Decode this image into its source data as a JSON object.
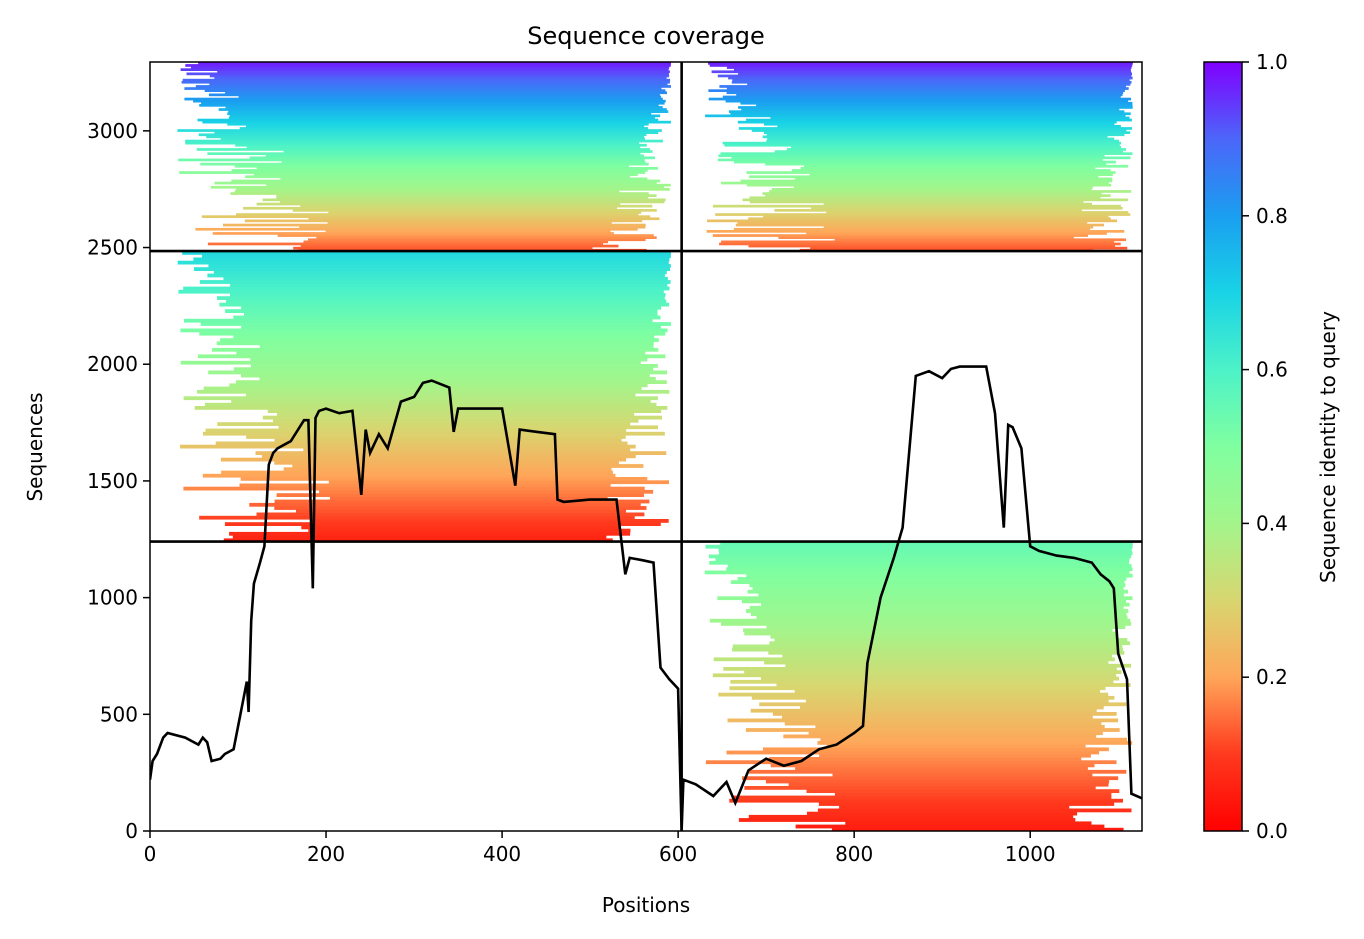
{
  "chart_data": {
    "type": "heatmap",
    "title": "Sequence coverage",
    "xlabel": "Positions",
    "ylabel": "Sequences",
    "xlim": [
      0,
      1127
    ],
    "ylim": [
      0,
      3295
    ],
    "xticks": [
      0,
      200,
      400,
      600,
      800,
      1000
    ],
    "yticks": [
      0,
      500,
      1000,
      1500,
      2000,
      2500,
      3000
    ],
    "colorbar": {
      "label": "Sequence identity to query",
      "colormap": "rainbow_r",
      "range": [
        0,
        1
      ],
      "ticks": [
        "0.0",
        "0.2",
        "0.4",
        "0.6",
        "0.8",
        "1.0"
      ]
    },
    "segment_boundaries": {
      "x": [
        604
      ],
      "y": [
        1240,
        2485
      ]
    },
    "coverage_blocks": [
      {
        "x0": 0,
        "x1": 604,
        "y0": 2485,
        "y1": 3295,
        "id_top": 0.97,
        "id_bottom": 0.12
      },
      {
        "x0": 0,
        "x1": 604,
        "y0": 1240,
        "y1": 2485,
        "id_top": 0.68,
        "id_bottom": 0.06
      },
      {
        "x0": 604,
        "x1": 1127,
        "y0": 2485,
        "y1": 3295,
        "id_top": 0.97,
        "id_bottom": 0.12
      },
      {
        "x0": 604,
        "x1": 1127,
        "y0": 0,
        "y1": 1240,
        "id_top": 0.55,
        "id_bottom": 0.05
      }
    ],
    "series": [
      {
        "type": "line",
        "color": "#000000",
        "x": [
          0,
          3,
          8,
          15,
          20,
          40,
          55,
          60,
          65,
          70,
          80,
          85,
          95,
          110,
          112,
          115,
          118,
          125,
          130,
          135,
          140,
          145,
          160,
          175,
          180,
          185,
          188,
          192,
          200,
          215,
          230,
          240,
          245,
          250,
          260,
          270,
          285,
          300,
          310,
          320,
          340,
          345,
          350,
          400,
          415,
          420,
          440,
          460,
          463,
          470,
          500,
          530,
          540,
          545,
          560,
          572,
          580,
          590,
          600,
          604,
          606,
          620,
          640,
          655,
          665,
          680,
          700,
          720,
          740,
          760,
          780,
          800,
          810,
          815,
          830,
          845,
          855,
          870,
          885,
          900,
          910,
          920,
          930,
          940,
          950,
          960,
          970,
          975,
          980,
          990,
          1000,
          1010,
          1030,
          1050,
          1070,
          1080,
          1090,
          1095,
          1100,
          1110,
          1115,
          1127
        ],
        "y": [
          220,
          300,
          330,
          400,
          420,
          400,
          370,
          400,
          380,
          300,
          310,
          330,
          350,
          640,
          510,
          900,
          1060,
          1150,
          1220,
          1570,
          1620,
          1640,
          1670,
          1760,
          1760,
          1040,
          1770,
          1800,
          1810,
          1790,
          1800,
          1440,
          1720,
          1620,
          1700,
          1640,
          1840,
          1860,
          1920,
          1930,
          1900,
          1710,
          1810,
          1810,
          1480,
          1720,
          1710,
          1700,
          1420,
          1410,
          1420,
          1420,
          1100,
          1170,
          1160,
          1150,
          700,
          650,
          610,
          0,
          220,
          200,
          150,
          210,
          120,
          260,
          310,
          280,
          300,
          350,
          370,
          420,
          450,
          720,
          1000,
          1170,
          1300,
          1950,
          1970,
          1940,
          1980,
          1990,
          1990,
          1990,
          1990,
          1790,
          1300,
          1740,
          1730,
          1640,
          1220,
          1200,
          1180,
          1170,
          1150,
          1100,
          1070,
          1040,
          760,
          650,
          160,
          140
        ]
      }
    ]
  }
}
